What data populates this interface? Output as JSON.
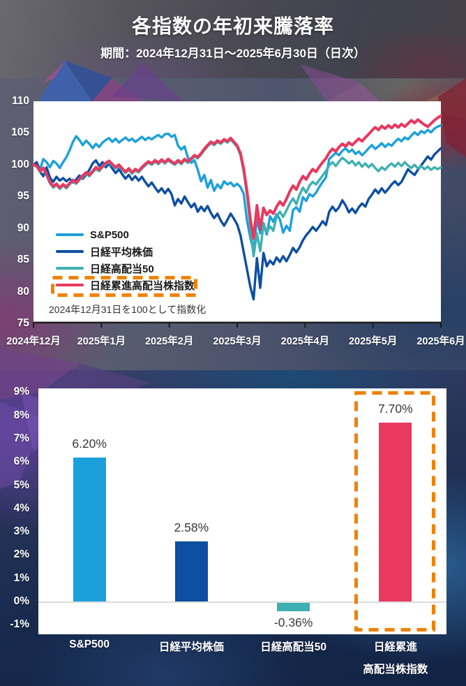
{
  "header": {
    "title": "各指数の年初来騰落率",
    "period": "期間：2024年12月31日～2025年6月30日（日次）"
  },
  "colors": {
    "sp500": "#1CA0DC",
    "nikkei225": "#0D4FA1",
    "highdiv50": "#3FB0B1",
    "ruishin": "#E8395F",
    "highlight_box": "#F18101",
    "axis_line": "#1A1A1A",
    "zero_line": "#DCDCDC",
    "panel": "#FFFFFF",
    "axis_text": "#FFFFFF",
    "value_text": "#3A3A3A"
  },
  "chart_data": [
    {
      "type": "line",
      "title": "各指数の年初来騰落率",
      "note": "2024年12月31日を100として指数化",
      "x_tick_labels": [
        "2024年12月",
        "2025年1月",
        "2025年2月",
        "2025年3月",
        "2025年4月",
        "2025年5月",
        "2025年6月"
      ],
      "ylim": [
        75,
        110
      ],
      "yticks": [
        110,
        105,
        100,
        95,
        90,
        85,
        80,
        75
      ],
      "baseline": 100,
      "grid": false,
      "legend_position": "inside-lower-left",
      "highlight_series_index": 3,
      "series": [
        {
          "name": "S&P500",
          "color_key": "sp500",
          "stroke_width": 3.4,
          "values": [
            100,
            100.2,
            99.3,
            100.9,
            100.4,
            99.6,
            100.6,
            100.2,
            99.5,
            100.4,
            101.2,
            102.3,
            103.6,
            104.5,
            103.9,
            103.1,
            103.8,
            103.3,
            102.6,
            103.3,
            102.8,
            103.5,
            103.9,
            104.2,
            103.6,
            104.1,
            103.5,
            103.9,
            104.3,
            103.8,
            104.1,
            103.6,
            104,
            104.4,
            103.9,
            104.3,
            104,
            104.4,
            104.7,
            104.3,
            104.8,
            104.9,
            104.4,
            104.7,
            103,
            102.4,
            102.9,
            101.1,
            100.3,
            100.7,
            99.2,
            97.4,
            98.4,
            96.4,
            97.6,
            95.9,
            96.9,
            96.3,
            97.4,
            96.9,
            97.2,
            96.6,
            97,
            96.5,
            95.4,
            91.2,
            88.5,
            86.4,
            91.5,
            89.2,
            90.8,
            89,
            91.9,
            91,
            92.2,
            91.4,
            89.3,
            90.4,
            89.6,
            92.9,
            93.3,
            92.6,
            94.9,
            94.3,
            95.4,
            95,
            95.6,
            96.5,
            97.3,
            98,
            100.9,
            101.4,
            101.9,
            101.5,
            102.2,
            102.6,
            102,
            102.4,
            101.7,
            102.1,
            101.5,
            102,
            102.6,
            103.1,
            102.5,
            102.9,
            103.4,
            102.8,
            103.3,
            103,
            103.6,
            104.1,
            103.7,
            104.3,
            104,
            104.6,
            105.1,
            104.7,
            105.3,
            105,
            105.5,
            105.1,
            105.7,
            106,
            106.2
          ]
        },
        {
          "name": "日経平均株価",
          "color_key": "nikkei225",
          "stroke_width": 3.4,
          "values": [
            100,
            100.4,
            98.9,
            98.2,
            99.6,
            98,
            97.3,
            98.1,
            97.5,
            97.9,
            97.4,
            97.8,
            97.2,
            97.7,
            98.3,
            97.8,
            98.4,
            99.2,
            100.2,
            100.7,
            99.8,
            100.4,
            99.6,
            100.2,
            99.4,
            98.7,
            99.3,
            98.5,
            97.8,
            98.4,
            97.6,
            98.2,
            97.5,
            98.1,
            97.3,
            96.6,
            97.2,
            96.4,
            95.7,
            96.3,
            95.5,
            96.2,
            95.4,
            93.6,
            94.6,
            93.9,
            95,
            94.1,
            93.3,
            93.9,
            92.6,
            93.4,
            92.7,
            93.5,
            92.4,
            91.6,
            92.3,
            91.2,
            90.4,
            91.3,
            92.3,
            91.5,
            90.6,
            88.9,
            86.2,
            83.5,
            80.8,
            78.8,
            85.3,
            80.6,
            86.1,
            84,
            84.9,
            84.3,
            85.4,
            84.7,
            85.6,
            84.8,
            85.8,
            86.9,
            86.2,
            87,
            88.1,
            88.9,
            89.5,
            90.2,
            89.6,
            90.3,
            91.1,
            90.5,
            92.6,
            93.4,
            92.7,
            93.3,
            94.4,
            93.6,
            92.5,
            93.1,
            92.4,
            93.3,
            93.9,
            93.4,
            94.6,
            95.3,
            96.1,
            95.5,
            96.3,
            95.6,
            96.2,
            96.9,
            97.4,
            96.8,
            97.3,
            98.3,
            99.3,
            98.8,
            98.4,
            99.2,
            99.9,
            100.6,
            101.3,
            100.8,
            101.6,
            102.1,
            102.6
          ]
        },
        {
          "name": "日経高配当50",
          "color_key": "highdiv50",
          "stroke_width": 3.4,
          "values": [
            100,
            99.7,
            98.9,
            99.4,
            98.3,
            97.1,
            96.4,
            96.8,
            96.2,
            96.7,
            96.3,
            96.9,
            97.4,
            97,
            97.6,
            98.1,
            98.6,
            98.2,
            98.8,
            99.3,
            99,
            99.6,
            100.1,
            100.4,
            99.9,
            99.4,
            99.8,
            99.2,
            98.7,
            99.2,
            98.6,
            99.1,
            98.8,
            99.4,
            99.9,
            100.3,
            100,
            100.5,
            100.1,
            100.6,
            100.2,
            100.7,
            100.3,
            100,
            100.5,
            100.1,
            100.7,
            100.3,
            100.8,
            101.3,
            101,
            101.6,
            102.3,
            102.9,
            103.4,
            103.1,
            103.6,
            103.3,
            103.8,
            103.5,
            104,
            103.4,
            102.8,
            101.5,
            98.9,
            95.2,
            90.3,
            85.6,
            89.2,
            86.4,
            90.6,
            89.4,
            90.3,
            89.6,
            91.9,
            92.6,
            91.8,
            92.8,
            93.9,
            94.7,
            93.8,
            95.3,
            96.4,
            95.6,
            96.7,
            97.3,
            96.9,
            97.6,
            98.3,
            99,
            99.9,
            100.4,
            99.8,
            100.5,
            101.1,
            100.7,
            100.2,
            100.6,
            99.9,
            100.4,
            99.7,
            100.2,
            99.6,
            100.1,
            99.5,
            99,
            99.6,
            99.2,
            99.8,
            100.2,
            99.7,
            100.3,
            99.8,
            100.4,
            99.9,
            99.5,
            100,
            99.4,
            99.8,
            99.3,
            99.7,
            99.2,
            99.6,
            99.3,
            99.6
          ]
        },
        {
          "name": "日経累進高配当株指数",
          "color_key": "ruishin",
          "stroke_width": 4,
          "values": [
            100,
            99.8,
            99,
            99.5,
            98.5,
            97.3,
            96.6,
            97,
            96.4,
            96.9,
            96.5,
            97.1,
            97.6,
            97.2,
            97.8,
            98.3,
            98.8,
            98.4,
            99,
            99.6,
            99.2,
            99.8,
            100.3,
            100.6,
            100.1,
            99.6,
            100,
            99.4,
            98.9,
            99.4,
            98.8,
            99.3,
            99,
            99.6,
            100.1,
            100.5,
            100.2,
            100.7,
            100.3,
            100.8,
            100.4,
            100.9,
            100.5,
            100.2,
            100.7,
            100.3,
            100.9,
            100.5,
            101,
            101.5,
            101.2,
            101.8,
            102.5,
            103.1,
            103.6,
            103.3,
            103.8,
            103.5,
            104,
            103.7,
            104.2,
            103.6,
            103,
            101.8,
            99.3,
            95.8,
            91.5,
            88.4,
            93.6,
            89.8,
            93.2,
            92.1,
            92.8,
            92.3,
            93.4,
            94.2,
            93.6,
            94.6,
            95.8,
            96.7,
            96.1,
            97.3,
            98.2,
            97.7,
            98.6,
            99.3,
            98.9,
            99.7,
            100.4,
            101,
            101.9,
            102.5,
            102.1,
            102.8,
            103.3,
            102.9,
            103.5,
            103.1,
            103.6,
            104.1,
            103.7,
            104.3,
            104.8,
            105.4,
            105.9,
            105.5,
            106.1,
            105.7,
            106.2,
            105.8,
            106.3,
            105.9,
            106.4,
            106,
            106.5,
            107,
            106.6,
            107.1,
            106.7,
            106.3,
            106,
            106.5,
            107,
            107.4,
            107.7
          ]
        }
      ]
    },
    {
      "type": "bar",
      "categories": [
        "S&P500",
        "日経平均株価",
        "日経高配当50",
        "日経累進高配当株指数"
      ],
      "category_lines": [
        [
          "S&P500"
        ],
        [
          "日経平均株価"
        ],
        [
          "日経高配当50"
        ],
        [
          "日経累進",
          "高配当株指数"
        ]
      ],
      "values": [
        6.2,
        2.58,
        -0.36,
        7.7
      ],
      "value_labels": [
        "6.20%",
        "2.58%",
        "-0.36%",
        "7.70%"
      ],
      "color_keys": [
        "sp500",
        "nikkei225",
        "highdiv50",
        "ruishin"
      ],
      "ylim": [
        -1,
        9
      ],
      "ytick_values": [
        9,
        8,
        7,
        6,
        5,
        4,
        3,
        2,
        1,
        0,
        -1
      ],
      "ytick_labels": [
        "9%",
        "8%",
        "7%",
        "6%",
        "5%",
        "4%",
        "3%",
        "2%",
        "1%",
        "0%",
        "-1%"
      ],
      "grid": false,
      "highlight_index": 3
    }
  ]
}
